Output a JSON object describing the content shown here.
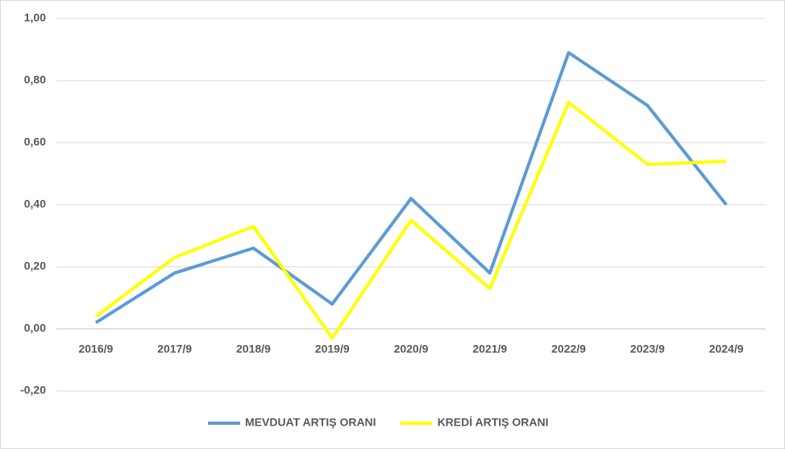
{
  "chart_data": {
    "type": "line",
    "categories": [
      "2016/9",
      "2017/9",
      "2018/9",
      "2019/9",
      "2020/9",
      "2021/9",
      "2022/9",
      "2023/9",
      "2024/9"
    ],
    "series": [
      {
        "name": "MEVDUAT ARTIŞ ORANI",
        "color": "#5b9bd5",
        "values": [
          0.02,
          0.18,
          0.26,
          0.08,
          0.42,
          0.18,
          0.89,
          0.72,
          0.4
        ]
      },
      {
        "name": "KREDİ ARTIŞ ORANI",
        "color": "#ffff00",
        "values": [
          0.04,
          0.23,
          0.33,
          -0.03,
          0.35,
          0.13,
          0.73,
          0.53,
          0.54
        ]
      }
    ],
    "ylim": [
      -0.2,
      1.0
    ],
    "yticks": [
      {
        "value": -0.2,
        "label": "-0,20"
      },
      {
        "value": 0,
        "label": "0,00"
      },
      {
        "value": 0.2,
        "label": "0,20"
      },
      {
        "value": 0.4,
        "label": "0,40"
      },
      {
        "value": 0.6,
        "label": "0,60"
      },
      {
        "value": 0.8,
        "label": "0,80"
      },
      {
        "value": 1.0,
        "label": "1,00"
      }
    ],
    "grid": true,
    "legend": "bottom"
  }
}
